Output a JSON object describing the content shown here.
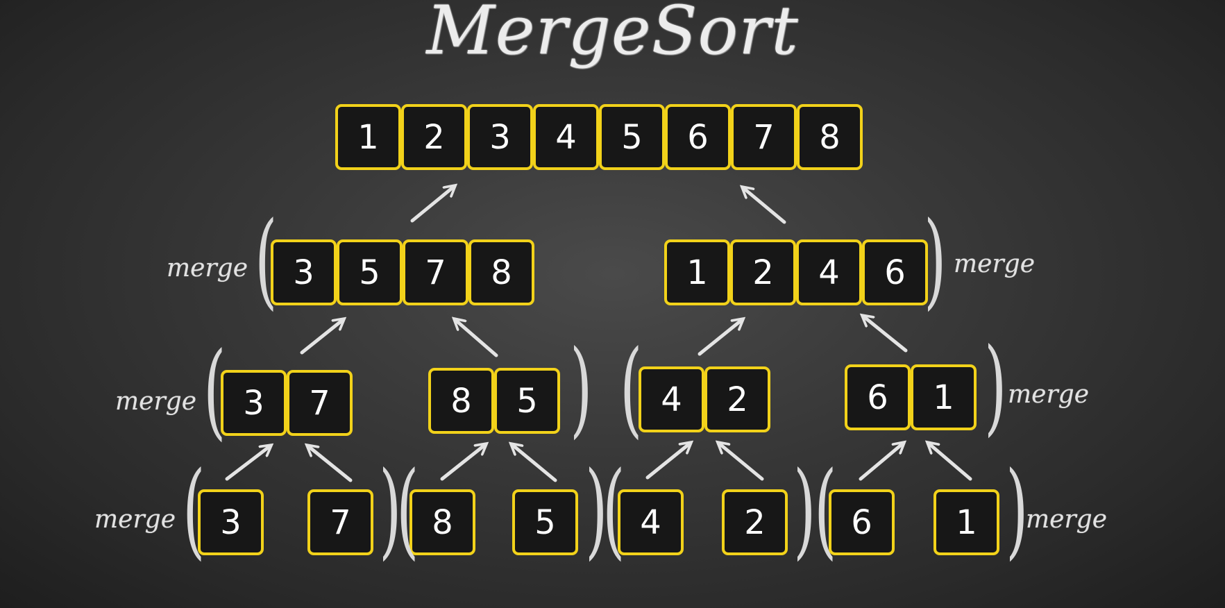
{
  "title": "MergeSort",
  "merge_label": "merge",
  "rows": {
    "top": [
      "1",
      "2",
      "3",
      "4",
      "5",
      "6",
      "7",
      "8"
    ],
    "half_left": [
      "3",
      "5",
      "7",
      "8"
    ],
    "half_right": [
      "1",
      "2",
      "4",
      "6"
    ],
    "pair_1": [
      "3",
      "7"
    ],
    "pair_2": [
      "8",
      "5"
    ],
    "pair_3": [
      "4",
      "2"
    ],
    "pair_4": [
      "6",
      "1"
    ],
    "singles": [
      "3",
      "7",
      "8",
      "5",
      "4",
      "2",
      "6",
      "1"
    ]
  },
  "colors": {
    "cell_border": "#f2d21a",
    "cell_fill": "#171717",
    "chalk": "#e2e2e2"
  }
}
